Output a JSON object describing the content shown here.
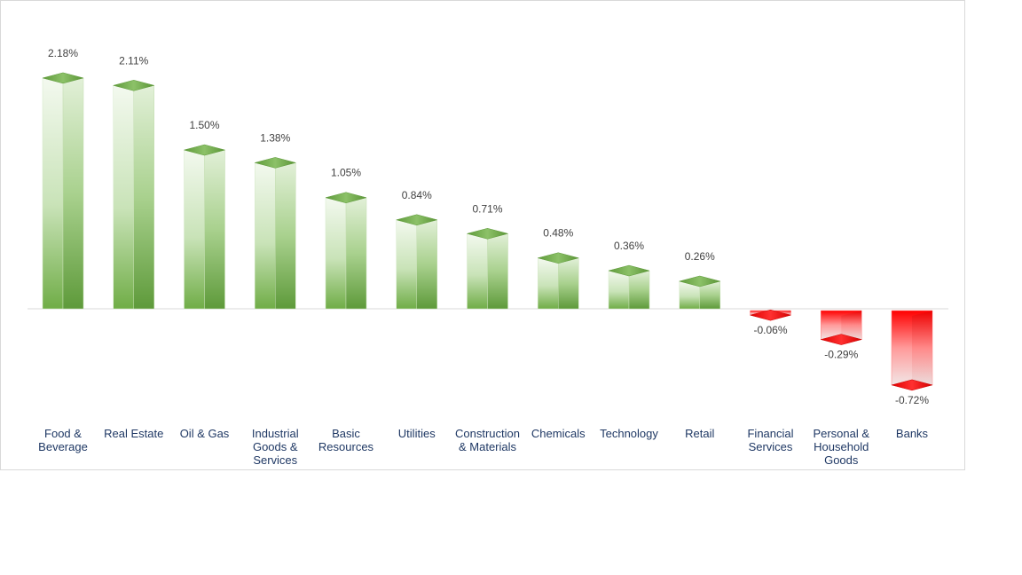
{
  "chart_data": {
    "type": "bar",
    "title": "",
    "xlabel": "",
    "ylabel": "",
    "ylim": [
      -0.72,
      2.18
    ],
    "grid": false,
    "legend": "none",
    "categories": [
      "Food & Beverage",
      "Real Estate",
      "Oil & Gas",
      "Industrial Goods & Services",
      "Basic Resources",
      "Utilities",
      "Construction & Materials",
      "Chemicals",
      "Technology",
      "Retail",
      "Financial Services",
      "Personal & Household Goods",
      "Banks"
    ],
    "category_label_lines": [
      [
        "Food &",
        "Beverage"
      ],
      [
        "Real Estate"
      ],
      [
        "Oil & Gas"
      ],
      [
        "Industrial",
        "Goods &",
        "Services"
      ],
      [
        "Basic",
        "Resources"
      ],
      [
        "Utilities"
      ],
      [
        "Construction",
        "& Materials"
      ],
      [
        "Chemicals"
      ],
      [
        "Technology"
      ],
      [
        "Retail"
      ],
      [
        "Financial",
        "Services"
      ],
      [
        "Personal &",
        "Household",
        "Goods"
      ],
      [
        "Banks"
      ]
    ],
    "values": [
      2.18,
      2.11,
      1.5,
      1.38,
      1.05,
      0.84,
      0.71,
      0.48,
      0.36,
      0.26,
      -0.06,
      -0.29,
      -0.72
    ],
    "data_labels": [
      "2.18%",
      "2.11%",
      "1.50%",
      "1.38%",
      "1.05%",
      "0.84%",
      "0.71%",
      "0.48%",
      "0.36%",
      "0.26%",
      "-0.06%",
      "-0.29%",
      "-0.72%"
    ],
    "colors": {
      "positive": "#70ad47",
      "positive_light": "#e8f3e0",
      "negative": "#ff0000",
      "negative_light": "#f2e6e6",
      "axis": "#d9d9d9",
      "category_text": "#1f3864",
      "value_text": "#404040"
    }
  }
}
